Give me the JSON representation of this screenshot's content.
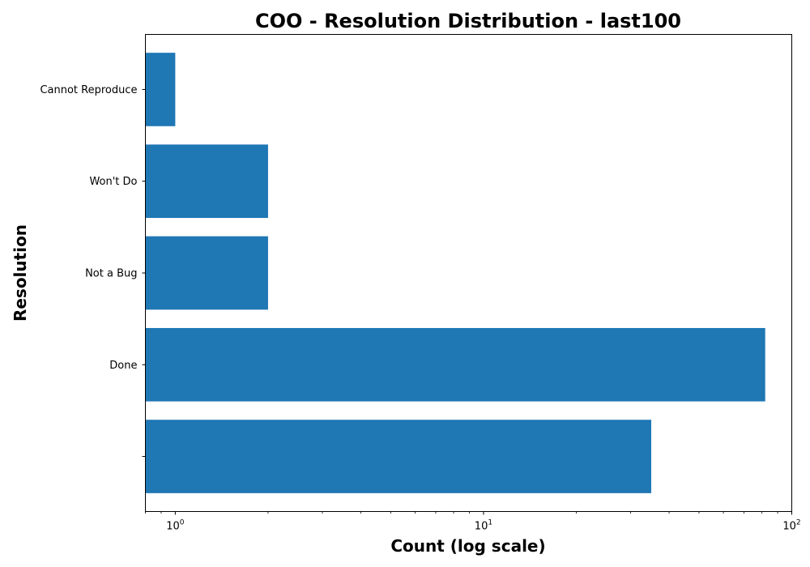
{
  "chart_data": {
    "type": "bar",
    "orientation": "horizontal",
    "title": "COO - Resolution Distribution - last100",
    "xlabel": "Count (log scale)",
    "ylabel": "Resolution",
    "x_scale": "log",
    "xlim": [
      0.8,
      100
    ],
    "x_ticks": [
      {
        "value": 1,
        "base": "10",
        "exp": "0"
      },
      {
        "value": 10,
        "base": "10",
        "exp": "1"
      },
      {
        "value": 100,
        "base": "10",
        "exp": "2"
      }
    ],
    "categories": [
      "Cannot Reproduce",
      "Won't Do",
      "Not a Bug",
      "Done",
      ""
    ],
    "values": [
      1,
      2,
      2,
      82,
      35
    ],
    "bar_color": "#1f77b4",
    "grid": false,
    "legend": "none"
  }
}
